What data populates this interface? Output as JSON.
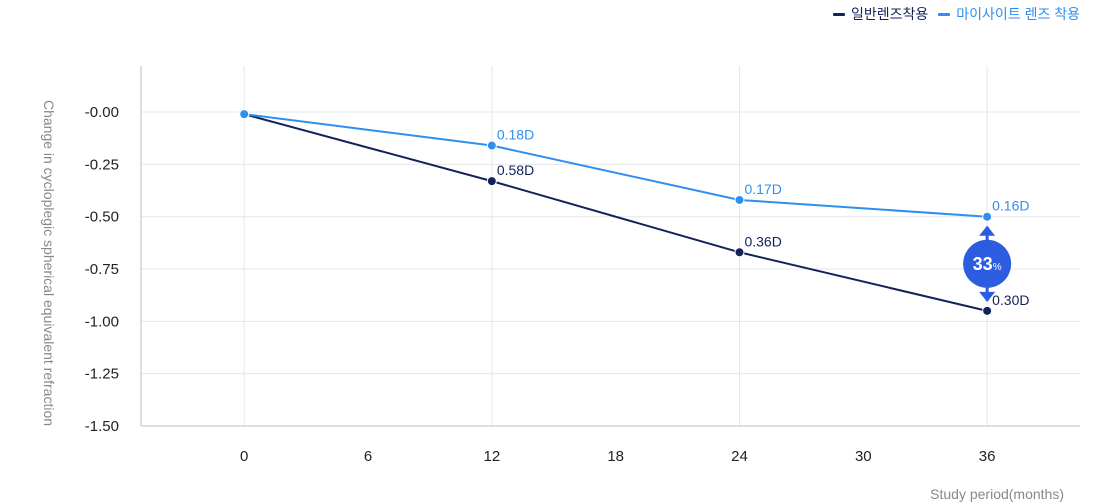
{
  "colors": {
    "regular": "#13235a",
    "mysight": "#2f8ff0",
    "badge": "#2c5ce0",
    "grid": "#e6e7ea",
    "axis": "#b8bcc4",
    "tick": "#222222",
    "label": "#888888"
  },
  "legend": [
    {
      "label": "일반렌즈착용",
      "color": "#13235a"
    },
    {
      "label": "마이사이트 렌즈 착용",
      "color": "#2f8ff0"
    }
  ],
  "chart_data": {
    "type": "line",
    "title": "",
    "xlabel": "Study period(months)",
    "ylabel": "Change in cycloplegic spherical equivalent refraction",
    "x_ticks": [
      0,
      6,
      12,
      18,
      24,
      30,
      36
    ],
    "xlim": [
      -5,
      40.5
    ],
    "y_ticks": [
      "-0.00",
      "-0.25",
      "-0.50",
      "-0.75",
      "-1.00",
      "-1.25",
      "-1.50"
    ],
    "ylim": [
      -1.5,
      0.22
    ],
    "grid": true,
    "legend_position": "top-right",
    "series": [
      {
        "name": "일반렌즈착용",
        "color": "#13235a",
        "x": [
          0,
          12,
          24,
          36
        ],
        "y": [
          -0.01,
          -0.33,
          -0.67,
          -0.95
        ],
        "labels": [
          "",
          "0.58D",
          "0.36D",
          "0.30D"
        ]
      },
      {
        "name": "마이사이트 렌즈 착용",
        "color": "#2f8ff0",
        "x": [
          0,
          12,
          24,
          36
        ],
        "y": [
          -0.01,
          -0.16,
          -0.42,
          -0.5
        ],
        "labels": [
          "",
          "0.18D",
          "0.17D",
          "0.16D"
        ]
      }
    ],
    "annotation": {
      "value": "33",
      "unit": "%",
      "x": 36
    }
  }
}
